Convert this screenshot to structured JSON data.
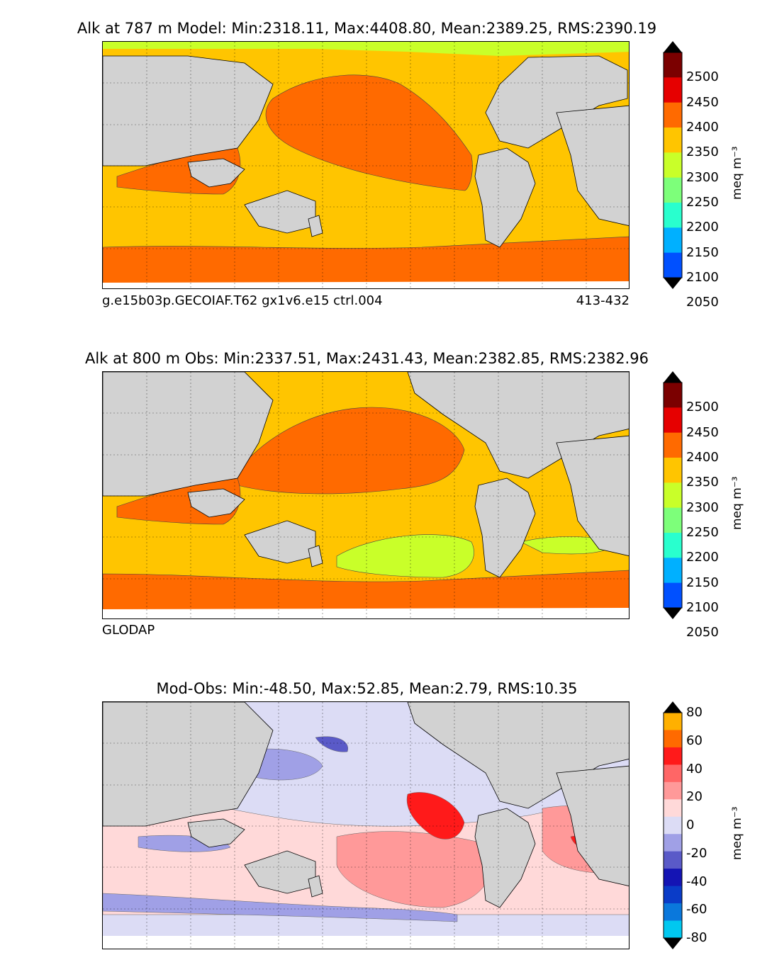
{
  "panels": [
    {
      "title": "Alk at 787 m Model: Min:2318.11, Max:4408.80, Mean:2389.25, RMS:2390.19",
      "subtitle_left": "g.e15b03p.GECOIAF.T62 gx1v6.e15 ctrl.004",
      "subtitle_right": "413-432",
      "unit": "meq m⁻³",
      "colorbar": {
        "ticks": [
          "2500",
          "2450",
          "2400",
          "2350",
          "2300",
          "2250",
          "2200",
          "2150",
          "2100",
          "2050"
        ],
        "colors": [
          "#7b0000",
          "#e60000",
          "#ff6a00",
          "#ffc500",
          "#c9ff29",
          "#7dff7a",
          "#29ffce",
          "#00b0ff",
          "#0050ff",
          "#0000e6",
          "#00007b"
        ]
      }
    },
    {
      "title": "Alk at 800 m Obs: Min:2337.51, Max:2431.43, Mean:2382.85, RMS:2382.96",
      "subtitle_left": "GLODAP",
      "subtitle_right": "",
      "unit": "meq m⁻³",
      "colorbar": {
        "ticks": [
          "2500",
          "2450",
          "2400",
          "2350",
          "2300",
          "2250",
          "2200",
          "2150",
          "2100",
          "2050"
        ],
        "colors": [
          "#7b0000",
          "#e60000",
          "#ff6a00",
          "#ffc500",
          "#c9ff29",
          "#7dff7a",
          "#29ffce",
          "#00b0ff",
          "#0050ff",
          "#0000e6",
          "#00007b"
        ]
      }
    },
    {
      "title": "Mod-Obs: Min:-48.50, Max:52.85, Mean:2.79, RMS:10.35",
      "subtitle_left": "",
      "subtitle_right": "",
      "unit": "meq m⁻³",
      "colorbar": {
        "ticks": [
          "80",
          "60",
          "40",
          "20",
          "0",
          "-20",
          "-40",
          "-60",
          "-80"
        ],
        "colors": [
          "#ffff00",
          "#ffb000",
          "#ff6a00",
          "#ff1a1a",
          "#ff6666",
          "#ff9999",
          "#ffd9d9",
          "#dcdcf5",
          "#a0a0e6",
          "#5a5ac8",
          "#1414b4",
          "#0a3cc8",
          "#0a78dc",
          "#00c8f0",
          "#00ffff"
        ]
      }
    }
  ]
}
